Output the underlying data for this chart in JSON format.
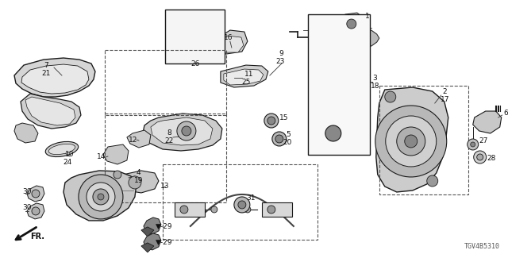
{
  "diagram_code": "TGV4B5310",
  "background": "#ffffff",
  "line_color": "#1a1a1a",
  "fill_light": "#e0e0e0",
  "fill_mid": "#c8c8c8",
  "fill_dark": "#aaaaaa",
  "label_fontsize": 6.5,
  "label_color": "#111111"
}
